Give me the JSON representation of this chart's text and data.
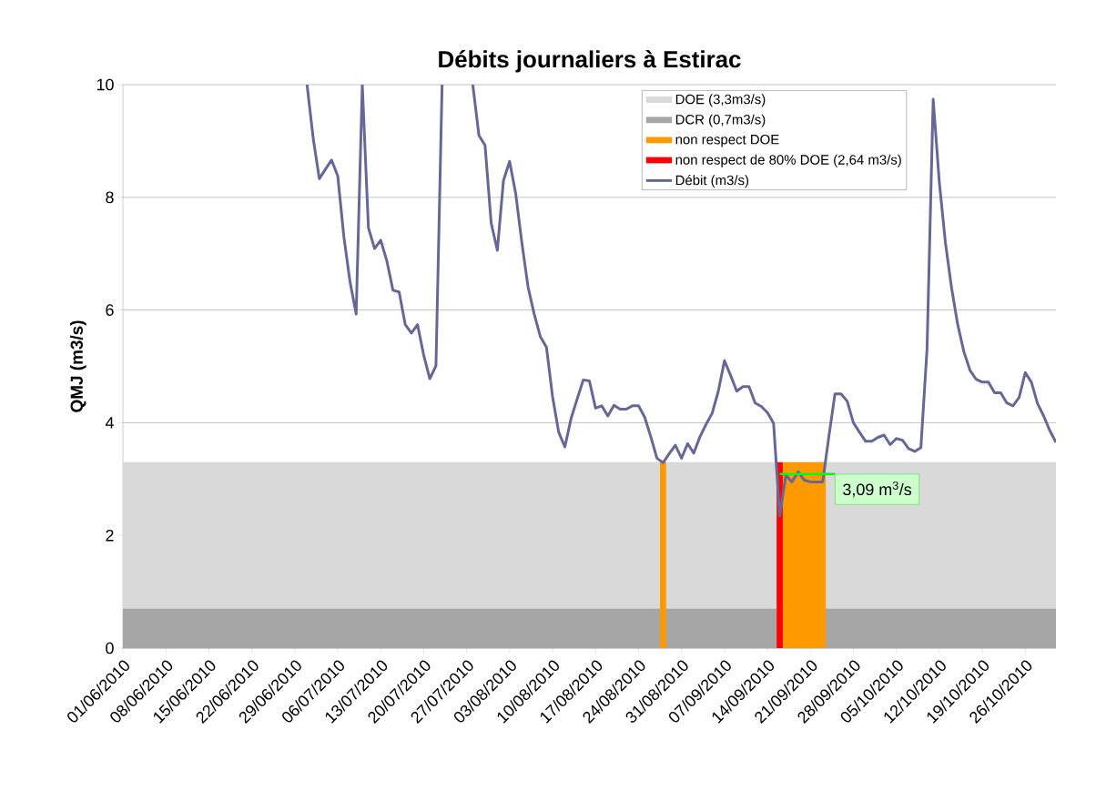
{
  "chart_data": {
    "type": "line",
    "title": "Débits journaliers à Estirac",
    "ylabel": "QMJ (m3/s)",
    "xlim": [
      "2010-06-01",
      "2010-10-31"
    ],
    "ylim": [
      0,
      10
    ],
    "xticks": [
      {
        "value": "2010-06-01",
        "label": "01/06/2010"
      },
      {
        "value": "2010-06-08",
        "label": "08/06/2010"
      },
      {
        "value": "2010-06-15",
        "label": "15/06/2010"
      },
      {
        "value": "2010-06-22",
        "label": "22/06/2010"
      },
      {
        "value": "2010-06-29",
        "label": "29/06/2010"
      },
      {
        "value": "2010-07-06",
        "label": "06/07/2010"
      },
      {
        "value": "2010-07-13",
        "label": "13/07/2010"
      },
      {
        "value": "2010-07-20",
        "label": "20/07/2010"
      },
      {
        "value": "2010-07-27",
        "label": "27/07/2010"
      },
      {
        "value": "2010-08-03",
        "label": "03/08/2010"
      },
      {
        "value": "2010-08-10",
        "label": "10/08/2010"
      },
      {
        "value": "2010-08-17",
        "label": "17/08/2010"
      },
      {
        "value": "2010-08-24",
        "label": "24/08/2010"
      },
      {
        "value": "2010-08-31",
        "label": "31/08/2010"
      },
      {
        "value": "2010-09-07",
        "label": "07/09/2010"
      },
      {
        "value": "2010-09-14",
        "label": "14/09/2010"
      },
      {
        "value": "2010-09-21",
        "label": "21/09/2010"
      },
      {
        "value": "2010-09-28",
        "label": "28/09/2010"
      },
      {
        "value": "2010-10-05",
        "label": "05/10/2010"
      },
      {
        "value": "2010-10-12",
        "label": "12/10/2010"
      },
      {
        "value": "2010-10-19",
        "label": "19/10/2010"
      },
      {
        "value": "2010-10-26",
        "label": "26/10/2010"
      }
    ],
    "yticks": [
      0,
      2,
      4,
      6,
      8,
      10
    ],
    "grid": "y",
    "legend": "top right",
    "bands": [
      {
        "axis": "y",
        "from": 0,
        "to": 3.3,
        "label": "DOE (3,3m3/s)",
        "color": "#d9d9d9"
      },
      {
        "axis": "y",
        "from": 0,
        "to": 0.7,
        "label": "DCR (0,7m3/s)",
        "color": "#a6a6a6"
      }
    ],
    "series": [
      {
        "name": "non respect DOE",
        "type": "area",
        "color": "#ff9900",
        "x": [
          "2010-08-27T12:00",
          "2010-08-28T12:00",
          "2010-09-01",
          "2010-09-16T12:00",
          "2010-09-23T12:00"
        ],
        "values": [
          3.3,
          3.3,
          null,
          3.3,
          3.3
        ]
      },
      {
        "name": "non respect de 80% DOE (2,64 m3/s)",
        "type": "area",
        "color": "#ff0000",
        "x": [
          "2010-09-15T12:00",
          "2010-09-16T12:00"
        ],
        "values": [
          3.3,
          3.3
        ]
      },
      {
        "name": "Débit (m3/s)",
        "color": "#666699",
        "x": [
          "2010-07-01",
          "2010-07-02",
          "2010-07-03",
          "2010-07-04",
          "2010-07-05",
          "2010-07-06",
          "2010-07-07",
          "2010-07-08",
          "2010-07-09",
          "2010-07-10",
          "2010-07-11",
          "2010-07-12",
          "2010-07-13",
          "2010-07-14",
          "2010-07-15",
          "2010-07-16",
          "2010-07-17",
          "2010-07-18",
          "2010-07-19",
          "2010-07-20",
          "2010-07-21",
          "2010-07-22",
          "2010-07-23",
          "2010-07-24",
          "2010-07-25",
          "2010-07-26",
          "2010-07-27",
          "2010-07-28",
          "2010-07-29",
          "2010-07-30",
          "2010-07-31",
          "2010-08-01",
          "2010-08-02",
          "2010-08-03",
          "2010-08-04",
          "2010-08-05",
          "2010-08-06",
          "2010-08-07",
          "2010-08-08",
          "2010-08-09",
          "2010-08-10",
          "2010-08-11",
          "2010-08-12",
          "2010-08-13",
          "2010-08-14",
          "2010-08-15",
          "2010-08-16",
          "2010-08-17",
          "2010-08-18",
          "2010-08-19",
          "2010-08-20",
          "2010-08-21",
          "2010-08-22",
          "2010-08-23",
          "2010-08-24",
          "2010-08-25",
          "2010-08-26",
          "2010-08-27",
          "2010-08-28",
          "2010-08-29",
          "2010-08-30",
          "2010-08-31",
          "2010-09-01",
          "2010-09-02",
          "2010-09-03",
          "2010-09-04",
          "2010-09-05",
          "2010-09-06",
          "2010-09-07",
          "2010-09-08",
          "2010-09-09",
          "2010-09-10",
          "2010-09-11",
          "2010-09-12",
          "2010-09-13",
          "2010-09-14",
          "2010-09-15",
          "2010-09-16",
          "2010-09-17",
          "2010-09-18",
          "2010-09-19",
          "2010-09-20",
          "2010-09-21",
          "2010-09-22",
          "2010-09-23",
          "2010-09-24",
          "2010-09-25",
          "2010-09-26",
          "2010-09-27",
          "2010-09-28",
          "2010-09-29",
          "2010-09-30",
          "2010-10-01",
          "2010-10-02",
          "2010-10-03",
          "2010-10-04",
          "2010-10-05",
          "2010-10-06",
          "2010-10-07",
          "2010-10-08",
          "2010-10-09",
          "2010-10-10",
          "2010-10-11",
          "2010-10-12",
          "2010-10-13",
          "2010-10-14",
          "2010-10-15",
          "2010-10-16",
          "2010-10-17",
          "2010-10-18",
          "2010-10-19",
          "2010-10-20",
          "2010-10-21",
          "2010-10-22",
          "2010-10-23",
          "2010-10-24",
          "2010-10-25",
          "2010-10-26",
          "2010-10-27",
          "2010-10-28",
          "2010-10-29",
          "2010-10-30",
          "2010-10-31"
        ],
        "values": [
          10,
          9.05,
          8.33,
          8.5,
          8.66,
          8.38,
          7.3,
          6.5,
          5.93,
          10,
          7.46,
          7.09,
          7.24,
          6.87,
          6.35,
          6.32,
          5.74,
          5.59,
          5.74,
          5.2,
          4.78,
          5.01,
          10,
          null,
          null,
          null,
          null,
          10,
          9.1,
          8.92,
          7.54,
          7.06,
          8.3,
          8.64,
          8.06,
          7.19,
          6.41,
          5.93,
          5.53,
          5.34,
          4.46,
          3.83,
          3.57,
          4.07,
          4.42,
          4.76,
          4.74,
          4.26,
          4.3,
          4.12,
          4.31,
          4.24,
          4.24,
          4.3,
          4.3,
          4.1,
          3.75,
          3.37,
          3.29,
          3.45,
          3.6,
          3.37,
          3.63,
          3.46,
          3.75,
          3.97,
          4.17,
          4.56,
          5.1,
          4.84,
          4.56,
          4.64,
          4.64,
          4.35,
          4.29,
          4.18,
          3.99,
          2.35,
          3.07,
          2.95,
          3.13,
          2.98,
          2.95,
          2.95,
          2.95,
          3.75,
          4.51,
          4.51,
          4.38,
          4.0,
          3.83,
          3.67,
          3.67,
          3.74,
          3.78,
          3.61,
          3.72,
          3.69,
          3.54,
          3.49,
          3.56,
          5.31,
          9.74,
          8.27,
          7.19,
          6.39,
          5.74,
          5.26,
          4.93,
          4.77,
          4.72,
          4.72,
          4.53,
          4.53,
          4.35,
          4.3,
          4.45,
          4.89,
          4.72,
          4.34,
          4.12,
          3.86,
          3.65
        ]
      },
      {
        "color": "#00ff00",
        "x": [
          "2010-09-16",
          "2010-09-25"
        ],
        "values": [
          3.09,
          3.09
        ]
      }
    ],
    "annotations": [
      {
        "text": "3,09 m$^{3}$/s",
        "x": "2010-09-25",
        "y": 3.09
      }
    ]
  }
}
